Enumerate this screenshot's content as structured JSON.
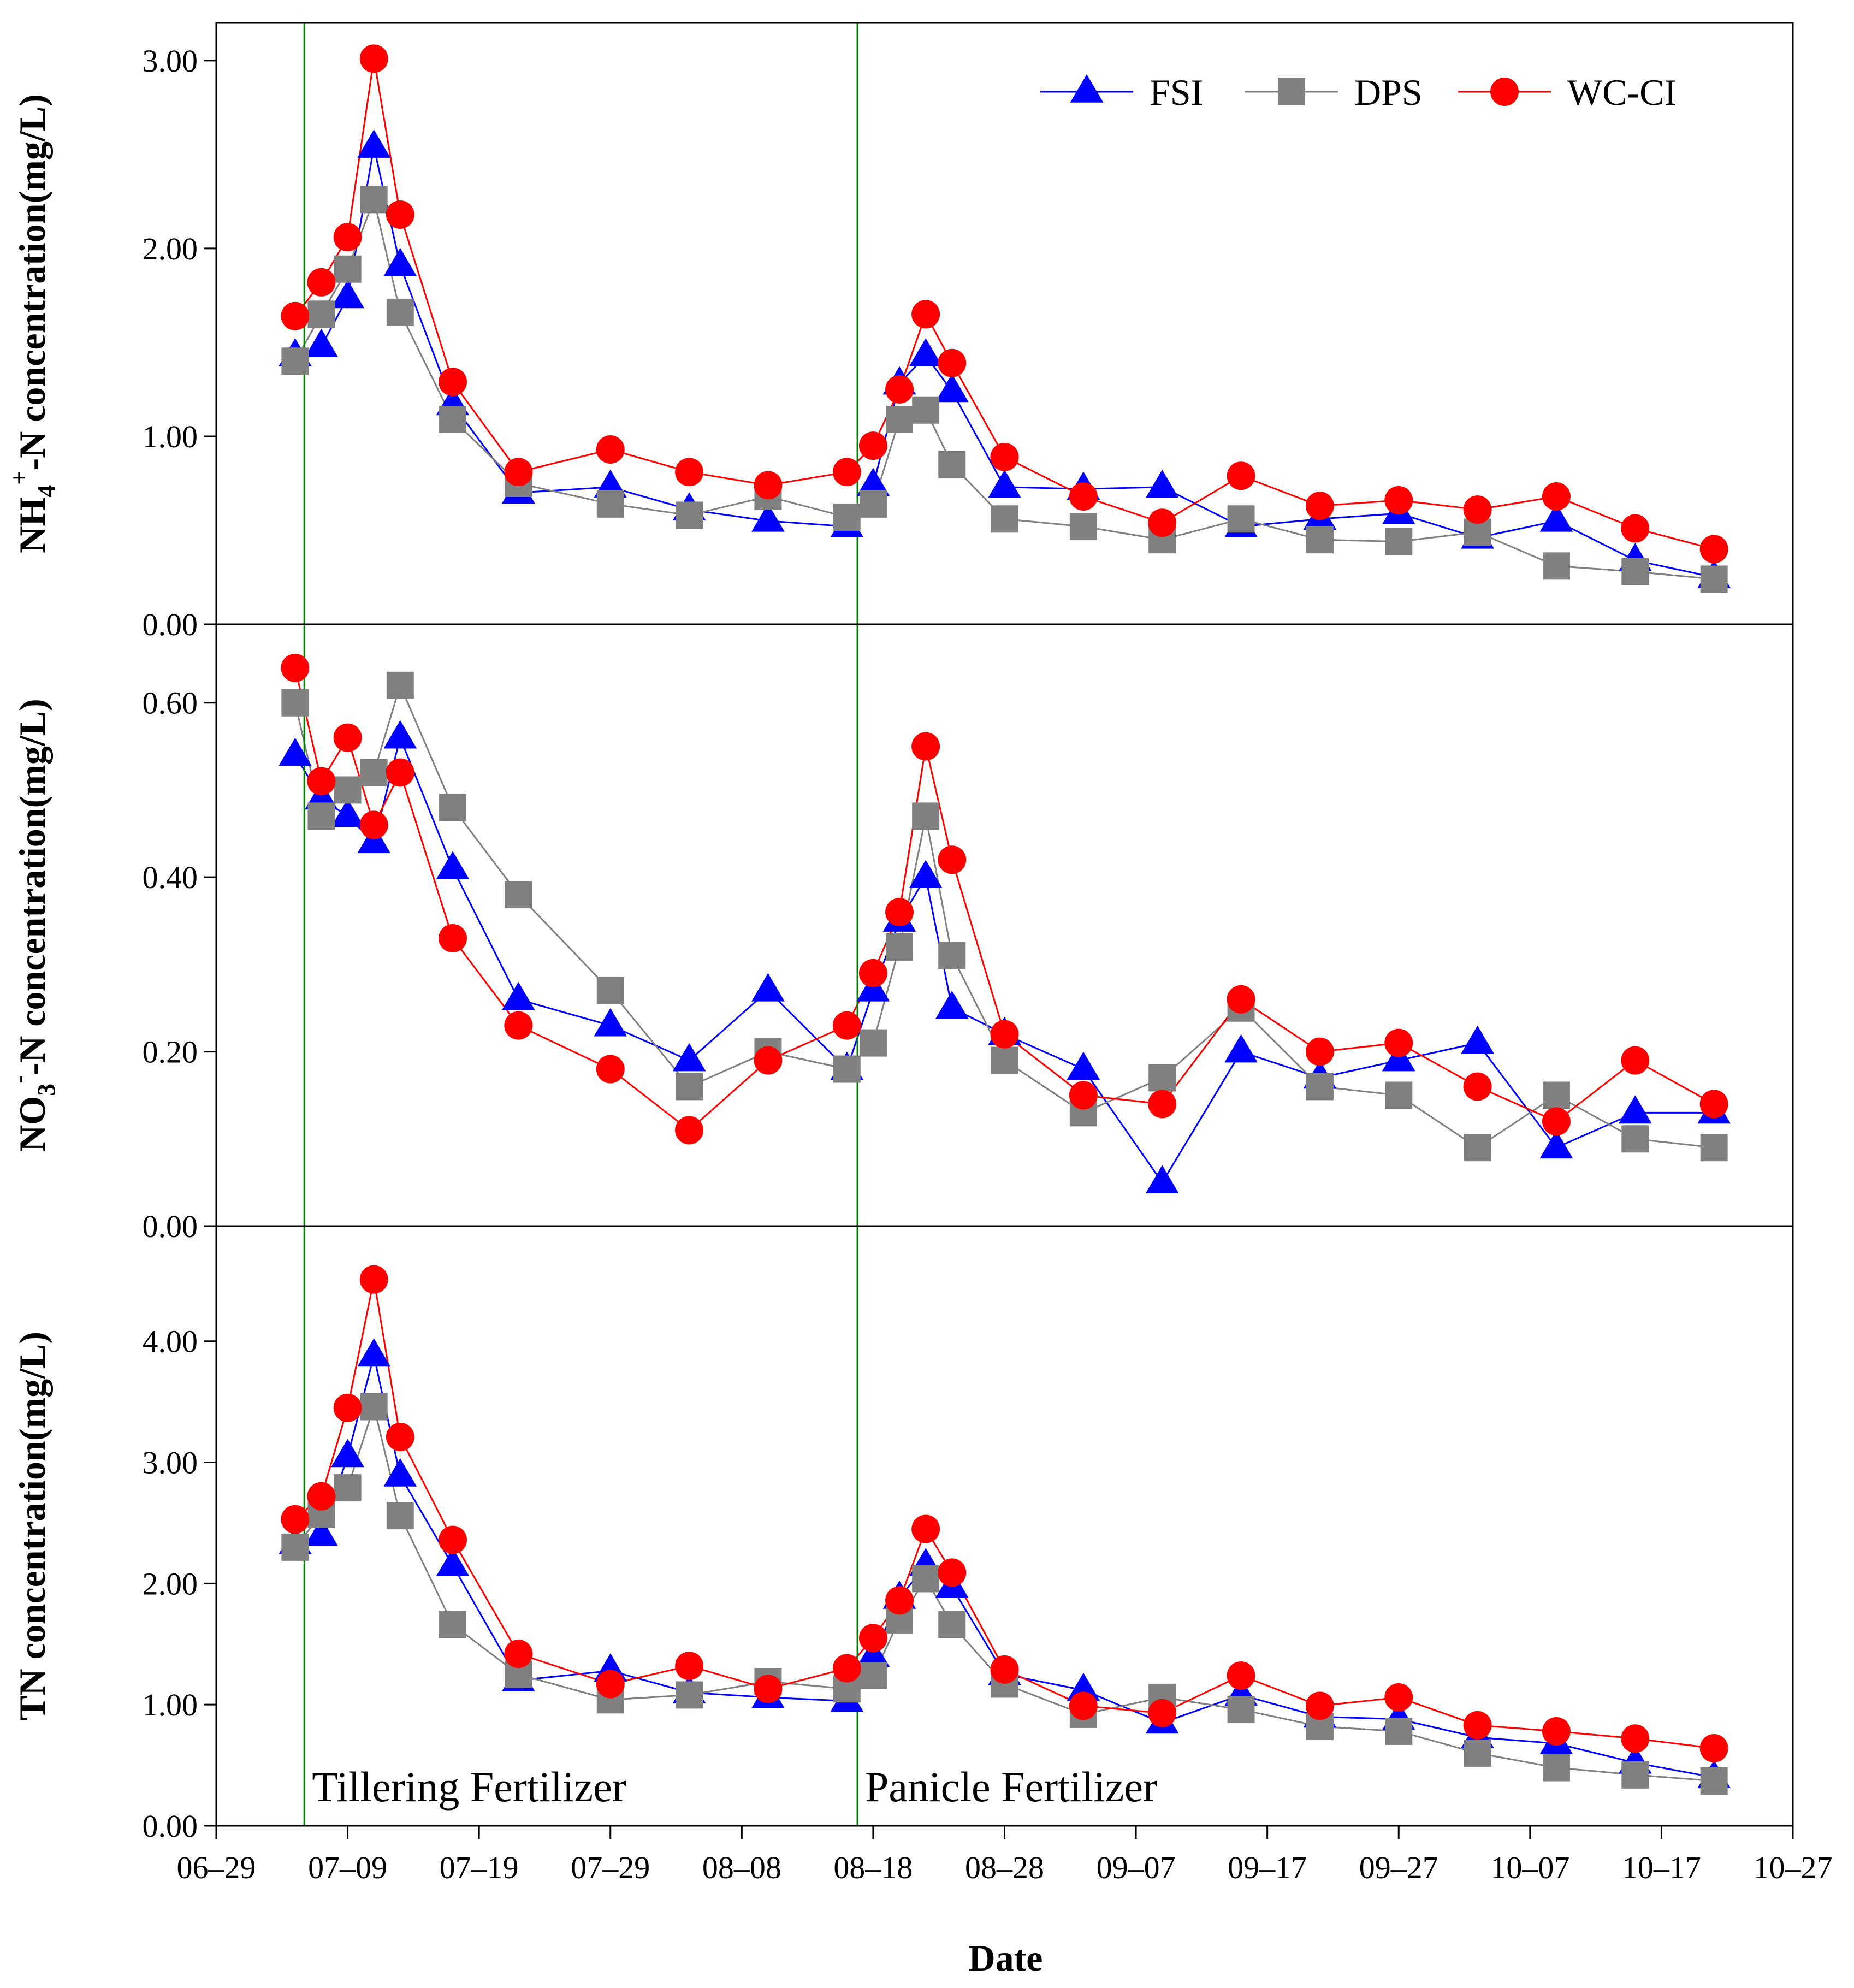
{
  "chart_data": {
    "type": "line",
    "xlabel": "Date",
    "x_ticks": [
      "06–29",
      "07–09",
      "07–19",
      "07–29",
      "08–08",
      "08–18",
      "08–28",
      "09–07",
      "09–17",
      "09–27",
      "10–07",
      "10–17",
      "10–27"
    ],
    "x_tick_days": [
      0,
      10,
      20,
      30,
      40,
      50,
      60,
      70,
      80,
      90,
      100,
      110,
      120
    ],
    "xlim": [
      0,
      120
    ],
    "x_days": [
      6,
      8,
      10,
      12,
      14,
      18,
      23,
      30,
      36,
      42,
      48,
      50,
      52,
      54,
      56,
      60,
      66,
      72,
      78,
      84,
      90,
      96,
      102,
      108,
      114
    ],
    "legend": [
      "FSI",
      "DPS",
      "WC-CI"
    ],
    "series_styles": [
      {
        "name": "FSI",
        "line_color": "#0000ff",
        "marker_color": "#0000ff",
        "marker": "triangle"
      },
      {
        "name": "DPS",
        "line_color": "#808080",
        "marker_color": "#808080",
        "marker": "square"
      },
      {
        "name": "WC-CI",
        "line_color": "#ff0000",
        "marker_color": "#ff0000",
        "marker": "circle"
      }
    ],
    "fertilizer_events": [
      {
        "label": "Tillering Fertilizer",
        "day": 6.7,
        "color": "#008000"
      },
      {
        "label": "Panicle Fertilizer",
        "day": 48.8,
        "color": "#008000"
      }
    ],
    "panels": [
      {
        "ylabel_parts": [
          "NH",
          "4",
          "+",
          "-N concentration(mg/L)"
        ],
        "ylim": [
          0,
          3.2
        ],
        "yticks": [
          0,
          1,
          2,
          3
        ],
        "ytick_labels": [
          "0.00",
          "1.00",
          "2.00",
          "3.00"
        ],
        "series": [
          {
            "name": "FSI",
            "values": [
              1.43,
              1.48,
              1.74,
              2.54,
              1.91,
              1.17,
              0.7,
              0.73,
              0.61,
              0.55,
              0.52,
              0.74,
              1.28,
              1.43,
              1.24,
              0.73,
              0.72,
              0.73,
              0.52,
              0.56,
              0.59,
              0.46,
              0.55,
              0.34,
              0.25
            ]
          },
          {
            "name": "DPS",
            "values": [
              1.4,
              1.65,
              1.89,
              2.26,
              1.66,
              1.09,
              0.75,
              0.64,
              0.58,
              0.68,
              0.57,
              0.64,
              1.09,
              1.14,
              0.85,
              0.56,
              0.52,
              0.45,
              0.56,
              0.45,
              0.44,
              0.49,
              0.31,
              0.28,
              0.24
            ]
          },
          {
            "name": "WC-CI",
            "values": [
              1.64,
              1.82,
              2.06,
              3.01,
              2.18,
              1.29,
              0.81,
              0.93,
              0.81,
              0.74,
              0.81,
              0.95,
              1.25,
              1.65,
              1.39,
              0.89,
              0.68,
              0.54,
              0.79,
              0.63,
              0.66,
              0.61,
              0.68,
              0.51,
              0.4
            ]
          }
        ]
      },
      {
        "ylabel_parts": [
          "NO",
          "3",
          "-",
          "-N concentration(mg/L)"
        ],
        "ylim": [
          0,
          0.69
        ],
        "yticks": [
          0,
          0.2,
          0.4,
          0.6
        ],
        "ytick_labels": [
          "0.00",
          "0.20",
          "0.40",
          "0.60"
        ],
        "series": [
          {
            "name": "FSI",
            "values": [
              0.54,
              0.49,
              0.47,
              0.44,
              0.56,
              0.41,
              0.26,
              0.23,
              0.19,
              0.27,
              0.18,
              0.27,
              0.35,
              0.4,
              0.25,
              0.22,
              0.18,
              0.05,
              0.2,
              0.17,
              0.19,
              0.21,
              0.09,
              0.13,
              0.13
            ]
          },
          {
            "name": "DPS",
            "values": [
              0.6,
              0.47,
              0.5,
              0.52,
              0.62,
              0.48,
              0.38,
              0.27,
              0.16,
              0.2,
              0.18,
              0.21,
              0.32,
              0.47,
              0.31,
              0.19,
              0.13,
              0.17,
              0.25,
              0.16,
              0.15,
              0.09,
              0.15,
              0.1,
              0.09
            ]
          },
          {
            "name": "WC-CI",
            "values": [
              0.64,
              0.51,
              0.56,
              0.46,
              0.52,
              0.33,
              0.23,
              0.18,
              0.11,
              0.19,
              0.23,
              0.29,
              0.36,
              0.55,
              0.42,
              0.22,
              0.15,
              0.14,
              0.26,
              0.2,
              0.21,
              0.16,
              0.12,
              0.19,
              0.14
            ]
          }
        ]
      },
      {
        "ylabel_parts": [
          "TN concentration(mg/L)"
        ],
        "ylim": [
          0,
          4.95
        ],
        "yticks": [
          0,
          1,
          2,
          3,
          4
        ],
        "ytick_labels": [
          "0.00",
          "1.00",
          "2.00",
          "3.00",
          "4.00"
        ],
        "series": [
          {
            "name": "FSI",
            "values": [
              2.33,
              2.4,
              3.05,
              3.88,
              2.89,
              2.15,
              1.2,
              1.28,
              1.1,
              1.06,
              1.03,
              1.4,
              1.88,
              2.15,
              1.97,
              1.25,
              1.12,
              0.85,
              1.08,
              0.9,
              0.88,
              0.73,
              0.68,
              0.52,
              0.4
            ]
          },
          {
            "name": "DPS",
            "values": [
              2.3,
              2.57,
              2.79,
              3.46,
              2.56,
              1.66,
              1.25,
              1.04,
              1.08,
              1.19,
              1.13,
              1.24,
              1.7,
              2.04,
              1.66,
              1.17,
              0.92,
              1.06,
              0.96,
              0.82,
              0.78,
              0.6,
              0.48,
              0.42,
              0.37
            ]
          },
          {
            "name": "WC-CI",
            "values": [
              2.53,
              2.72,
              3.45,
              4.51,
              3.21,
              2.36,
              1.42,
              1.17,
              1.32,
              1.13,
              1.3,
              1.55,
              1.86,
              2.45,
              2.09,
              1.29,
              0.99,
              0.93,
              1.24,
              0.99,
              1.06,
              0.83,
              0.78,
              0.72,
              0.64
            ]
          }
        ]
      }
    ]
  }
}
